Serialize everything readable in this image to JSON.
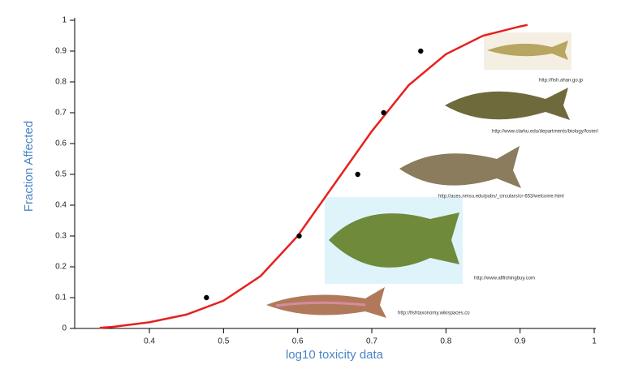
{
  "chart_data": {
    "type": "scatter",
    "x_label": "log10 toxicity data",
    "y_label": "Fraction Affected",
    "x": [
      0.477,
      0.602,
      0.681,
      0.716,
      0.766
    ],
    "values": [
      0.1,
      0.3,
      0.5,
      0.7,
      0.9
    ],
    "color": "#000000",
    "fit": {
      "x": [
        0.333,
        0.35,
        0.4,
        0.45,
        0.5,
        0.55,
        0.6,
        0.65,
        0.7,
        0.75,
        0.8,
        0.85,
        0.9,
        0.91
      ],
      "values": [
        0.002,
        0.005,
        0.02,
        0.045,
        0.09,
        0.17,
        0.3,
        0.47,
        0.64,
        0.79,
        0.89,
        0.95,
        0.98,
        0.985
      ],
      "color": "#e8201e"
    },
    "xlim": [
      0.3,
      1
    ],
    "ylim": [
      0,
      1
    ],
    "xticks": [
      0.4,
      0.5,
      0.6,
      0.7,
      0.8,
      0.9,
      1
    ],
    "yticks": [
      0,
      0.1,
      0.2,
      0.3,
      0.4,
      0.5,
      0.6,
      0.7,
      0.8,
      0.9,
      1
    ],
    "annotations": [
      "http://fish.ahan.go.jp",
      "http://www.clarku.edu/departments/biology/foster/",
      "http://aces.nmsu.edu/pubs/_circulars/cr-653/welcome.html",
      "http://www.allfishingbuy.com",
      "http://fishtaxonomy.wikispaces.co"
    ]
  }
}
